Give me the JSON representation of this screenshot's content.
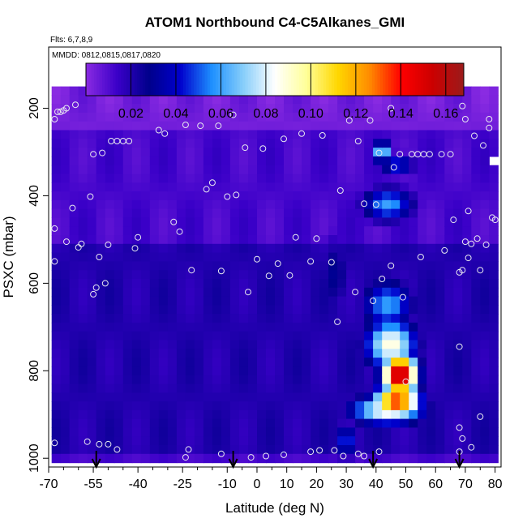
{
  "chart_data": {
    "type": "heatmap",
    "title": "ATOM1 Northbound C4-C5Alkanes_GMI",
    "subtitle_flights": "Flts: 6,7,8,9",
    "subtitle_dates": "MMDD: 0812,0815,0817,0820",
    "xlabel": "Latitude (deg N)",
    "ylabel": "PSXC (mbar)",
    "xlim": [
      -70,
      82
    ],
    "ylim": [
      1020,
      60
    ],
    "x_ticks": [
      -70,
      -55,
      -40,
      -25,
      -10,
      0,
      10,
      20,
      30,
      40,
      50,
      60,
      70,
      80
    ],
    "x_minor_ticks": [
      -65,
      -60,
      -50,
      -45,
      -35,
      -30,
      -20,
      -15,
      -5,
      5,
      15,
      25,
      35,
      45,
      55,
      65,
      75
    ],
    "y_ticks": [
      200,
      400,
      600,
      800,
      1000
    ],
    "colorbar": {
      "min": 0.0,
      "max": 0.168,
      "ticks": [
        0.02,
        0.04,
        0.06,
        0.08,
        0.1,
        0.12,
        0.14,
        0.16
      ],
      "tick_labels": [
        "0.02",
        "0.04",
        "0.06",
        "0.08",
        "0.10",
        "0.12",
        "0.14",
        "0.16"
      ],
      "stops": [
        "#8A2BE2",
        "#3A00C8",
        "#00008B",
        "#0000CD",
        "#1E90FF",
        "#87CEFA",
        "#FFFFFF",
        "#FFFF99",
        "#FFD700",
        "#FF8C00",
        "#FF0000",
        "#CC0000",
        "#9B1B1B"
      ]
    },
    "background_value": 0.012,
    "plumes": [
      {
        "lat": 48,
        "p": 810,
        "value": 0.163,
        "lat_width": 6,
        "p_width": 55
      },
      {
        "lat": 47,
        "p": 870,
        "value": 0.14,
        "lat_width": 8,
        "p_width": 40
      },
      {
        "lat": 45,
        "p": 740,
        "value": 0.09,
        "lat_width": 9,
        "p_width": 60
      },
      {
        "lat": 44,
        "p": 890,
        "value": 0.09,
        "lat_width": 13,
        "p_width": 35
      },
      {
        "lat": 44,
        "p": 650,
        "value": 0.06,
        "lat_width": 9,
        "p_width": 60
      },
      {
        "lat": 44,
        "p": 420,
        "value": 0.06,
        "lat_width": 9,
        "p_width": 40
      },
      {
        "lat": 42,
        "p": 300,
        "value": 0.08,
        "lat_width": 3,
        "p_width": 25
      },
      {
        "lat": 47,
        "p": 330,
        "value": 0.05,
        "lat_width": 6,
        "p_width": 25
      },
      {
        "lat": 30,
        "p": 960,
        "value": 0.05,
        "lat_width": 4,
        "p_width": 40
      },
      {
        "lat": 26,
        "p": 580,
        "value": 0.03,
        "lat_width": 6,
        "p_width": 100
      }
    ],
    "low_layers": [
      {
        "p_min": 150,
        "p_max": 260,
        "value": 0.004
      },
      {
        "p_min": 260,
        "p_max": 520,
        "value": 0.012
      },
      {
        "p_min": 520,
        "p_max": 1000,
        "value": 0.02
      }
    ],
    "samples": [
      {
        "lat": -68,
        "p": 225
      },
      {
        "lat": -67,
        "p": 208
      },
      {
        "lat": -66,
        "p": 208
      },
      {
        "lat": -65,
        "p": 205
      },
      {
        "lat": -64,
        "p": 200
      },
      {
        "lat": -61,
        "p": 192
      },
      {
        "lat": -68,
        "p": 475
      },
      {
        "lat": -68,
        "p": 550
      },
      {
        "lat": -64,
        "p": 505
      },
      {
        "lat": -62,
        "p": 428
      },
      {
        "lat": -60,
        "p": 518
      },
      {
        "lat": -59,
        "p": 510
      },
      {
        "lat": -56,
        "p": 402
      },
      {
        "lat": -55,
        "p": 305
      },
      {
        "lat": -53,
        "p": 540
      },
      {
        "lat": -52,
        "p": 302
      },
      {
        "lat": -54,
        "p": 610
      },
      {
        "lat": -51,
        "p": 600
      },
      {
        "lat": -50,
        "p": 512
      },
      {
        "lat": -49,
        "p": 275
      },
      {
        "lat": -47,
        "p": 275
      },
      {
        "lat": -45,
        "p": 275
      },
      {
        "lat": -43,
        "p": 275
      },
      {
        "lat": -41,
        "p": 520
      },
      {
        "lat": -40,
        "p": 495
      },
      {
        "lat": -33,
        "p": 250
      },
      {
        "lat": -31,
        "p": 258
      },
      {
        "lat": -28,
        "p": 460
      },
      {
        "lat": -26,
        "p": 482
      },
      {
        "lat": -24,
        "p": 238
      },
      {
        "lat": -22,
        "p": 570
      },
      {
        "lat": -19,
        "p": 240
      },
      {
        "lat": -17,
        "p": 385
      },
      {
        "lat": -15,
        "p": 370
      },
      {
        "lat": -13,
        "p": 240
      },
      {
        "lat": -12,
        "p": 572
      },
      {
        "lat": -10,
        "p": 402
      },
      {
        "lat": -8,
        "p": 215
      },
      {
        "lat": -7,
        "p": 398
      },
      {
        "lat": -4,
        "p": 290
      },
      {
        "lat": -3,
        "p": 620
      },
      {
        "lat": 0,
        "p": 545
      },
      {
        "lat": 2,
        "p": 292
      },
      {
        "lat": 4,
        "p": 583
      },
      {
        "lat": 7,
        "p": 555
      },
      {
        "lat": 9,
        "p": 270
      },
      {
        "lat": 11,
        "p": 582
      },
      {
        "lat": 13,
        "p": 495
      },
      {
        "lat": 15,
        "p": 258
      },
      {
        "lat": 18,
        "p": 550
      },
      {
        "lat": 20,
        "p": 498
      },
      {
        "lat": 22,
        "p": 262
      },
      {
        "lat": 25,
        "p": 552
      },
      {
        "lat": 27,
        "p": 688
      },
      {
        "lat": 28,
        "p": 388
      },
      {
        "lat": 31,
        "p": 228
      },
      {
        "lat": 33,
        "p": 620
      },
      {
        "lat": 34,
        "p": 275
      },
      {
        "lat": 36,
        "p": 418
      },
      {
        "lat": 38,
        "p": 228
      },
      {
        "lat": 40,
        "p": 420
      },
      {
        "lat": 41,
        "p": 302
      },
      {
        "lat": 42,
        "p": 590
      },
      {
        "lat": 45,
        "p": 200
      },
      {
        "lat": 46,
        "p": 335
      },
      {
        "lat": 48,
        "p": 305
      },
      {
        "lat": 49,
        "p": 632
      },
      {
        "lat": 50,
        "p": 825
      },
      {
        "lat": 52,
        "p": 305
      },
      {
        "lat": 54,
        "p": 305
      },
      {
        "lat": 56,
        "p": 305
      },
      {
        "lat": 58,
        "p": 305
      },
      {
        "lat": 62,
        "p": 305
      },
      {
        "lat": 65,
        "p": 305
      },
      {
        "lat": 66,
        "p": 455
      },
      {
        "lat": 68,
        "p": 745
      },
      {
        "lat": 69,
        "p": 195
      },
      {
        "lat": 69,
        "p": 570
      },
      {
        "lat": 70,
        "p": 225
      },
      {
        "lat": 71,
        "p": 435
      },
      {
        "lat": 72,
        "p": 510
      },
      {
        "lat": 73,
        "p": 263
      },
      {
        "lat": 74,
        "p": 498
      },
      {
        "lat": 75,
        "p": 570
      },
      {
        "lat": 76,
        "p": 285
      },
      {
        "lat": 77,
        "p": 512
      },
      {
        "lat": 78,
        "p": 225
      },
      {
        "lat": 78,
        "p": 245
      },
      {
        "lat": 79,
        "p": 450
      },
      {
        "lat": 80,
        "p": 455
      },
      {
        "lat": 68,
        "p": 575
      },
      {
        "lat": 70,
        "p": 505
      },
      {
        "lat": 63,
        "p": 525
      },
      {
        "lat": 55,
        "p": 540
      },
      {
        "lat": 45,
        "p": 560
      },
      {
        "lat": 39,
        "p": 640
      },
      {
        "lat": 71,
        "p": 542
      },
      {
        "lat": 68,
        "p": 930
      },
      {
        "lat": 69,
        "p": 955
      },
      {
        "lat": 72,
        "p": 975
      },
      {
        "lat": 75,
        "p": 905
      },
      {
        "lat": -68,
        "p": 965
      },
      {
        "lat": -57,
        "p": 962
      },
      {
        "lat": -53,
        "p": 968
      },
      {
        "lat": -50,
        "p": 968
      },
      {
        "lat": -47,
        "p": 980
      },
      {
        "lat": -23,
        "p": 980
      },
      {
        "lat": -24,
        "p": 998
      },
      {
        "lat": -12,
        "p": 990
      },
      {
        "lat": -2,
        "p": 998
      },
      {
        "lat": 3,
        "p": 995
      },
      {
        "lat": 9,
        "p": 992
      },
      {
        "lat": 18,
        "p": 985
      },
      {
        "lat": 21,
        "p": 982
      },
      {
        "lat": 26,
        "p": 982
      },
      {
        "lat": 29,
        "p": 995
      },
      {
        "lat": 34,
        "p": 990
      },
      {
        "lat": 36,
        "p": 995
      },
      {
        "lat": 41,
        "p": 985
      },
      {
        "lat": 68,
        "p": 985
      },
      {
        "lat": -55,
        "p": 625
      }
    ],
    "arrows": [
      -54,
      -8,
      39,
      68
    ]
  }
}
